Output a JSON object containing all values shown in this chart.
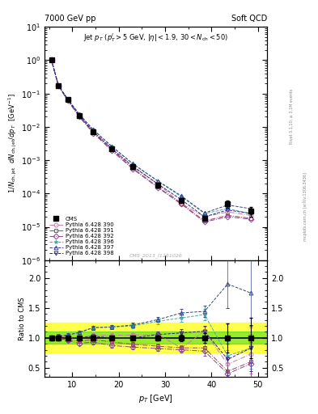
{
  "title_left": "7000 GeV pp",
  "title_right": "Soft QCD",
  "cms_x": [
    5.5,
    7.0,
    9.0,
    11.5,
    14.5,
    18.5,
    23.0,
    28.5,
    33.5,
    38.5,
    43.5,
    48.5
  ],
  "cms_y": [
    1.0,
    0.17,
    0.065,
    0.022,
    0.007,
    0.0022,
    0.00065,
    0.00018,
    6e-05,
    1.8e-05,
    5e-05,
    3e-05
  ],
  "cms_yerr": [
    0.04,
    0.007,
    0.002,
    0.0008,
    0.00025,
    7e-05,
    2.5e-05,
    8e-06,
    3e-06,
    1.5e-06,
    1.2e-05,
    1e-05
  ],
  "series": [
    {
      "label": "Pythia 6.428 390",
      "color": "#c47aaa",
      "marker": "o",
      "linestyle": "-.",
      "x": [
        5.5,
        7.0,
        9.0,
        11.5,
        14.5,
        18.5,
        23.0,
        28.5,
        33.5,
        38.5,
        43.5,
        48.5
      ],
      "y": [
        1.0,
        0.173,
        0.066,
        0.022,
        0.0073,
        0.0023,
        0.00068,
        0.00019,
        5e-05,
        2e-05,
        2.8e-05,
        2.2e-05
      ],
      "ratio": [
        1.0,
        1.02,
        1.015,
        1.0,
        1.043,
        1.045,
        1.046,
        1.056,
        0.83,
        1.11,
        0.56,
        0.73
      ],
      "ratio_err": [
        0.04,
        0.04,
        0.03,
        0.03,
        0.035,
        0.032,
        0.038,
        0.044,
        0.05,
        0.08,
        0.24,
        0.33
      ]
    },
    {
      "label": "Pythia 6.428 391",
      "color": "#994455",
      "marker": "s",
      "linestyle": "-.",
      "x": [
        5.5,
        7.0,
        9.0,
        11.5,
        14.5,
        18.5,
        23.0,
        28.5,
        33.5,
        38.5,
        43.5,
        48.5
      ],
      "y": [
        1.0,
        0.17,
        0.063,
        0.0208,
        0.0068,
        0.00205,
        0.00058,
        0.000155,
        5e-05,
        1.5e-05,
        2.2e-05,
        1.8e-05
      ],
      "ratio": [
        1.0,
        1.0,
        0.969,
        0.945,
        0.971,
        0.932,
        0.892,
        0.861,
        0.833,
        0.833,
        0.44,
        0.6
      ],
      "ratio_err": [
        0.04,
        0.04,
        0.03,
        0.03,
        0.035,
        0.032,
        0.038,
        0.044,
        0.05,
        0.08,
        0.24,
        0.33
      ]
    },
    {
      "label": "Pythia 6.428 392",
      "color": "#884499",
      "marker": "D",
      "linestyle": "-.",
      "x": [
        5.5,
        7.0,
        9.0,
        11.5,
        14.5,
        18.5,
        23.0,
        28.5,
        33.5,
        38.5,
        43.5,
        48.5
      ],
      "y": [
        1.0,
        0.17,
        0.062,
        0.02,
        0.0065,
        0.00192,
        0.00055,
        0.000148,
        4.8e-05,
        1.4e-05,
        2e-05,
        1.7e-05
      ],
      "ratio": [
        1.0,
        1.0,
        0.954,
        0.909,
        0.929,
        0.873,
        0.846,
        0.822,
        0.8,
        0.778,
        0.4,
        0.57
      ],
      "ratio_err": [
        0.04,
        0.04,
        0.03,
        0.03,
        0.035,
        0.032,
        0.038,
        0.044,
        0.05,
        0.08,
        0.24,
        0.33
      ]
    },
    {
      "label": "Pythia 6.428 396",
      "color": "#44aaaa",
      "marker": "*",
      "linestyle": "--",
      "x": [
        5.5,
        7.0,
        9.0,
        11.5,
        14.5,
        18.5,
        23.0,
        28.5,
        33.5,
        38.5,
        43.5,
        48.5
      ],
      "y": [
        1.0,
        0.175,
        0.068,
        0.024,
        0.0082,
        0.0026,
        0.00078,
        0.00023,
        8e-05,
        2.5e-05,
        3.5e-05,
        2.5e-05
      ],
      "ratio": [
        1.0,
        1.03,
        1.046,
        1.091,
        1.171,
        1.182,
        1.2,
        1.278,
        1.333,
        1.389,
        0.7,
        0.83
      ],
      "ratio_err": [
        0.04,
        0.04,
        0.03,
        0.03,
        0.035,
        0.032,
        0.038,
        0.044,
        0.07,
        0.1,
        0.25,
        0.35
      ]
    },
    {
      "label": "Pythia 6.428 397",
      "color": "#334488",
      "marker": "^",
      "linestyle": "--",
      "x": [
        5.5,
        7.0,
        9.0,
        11.5,
        14.5,
        18.5,
        23.0,
        28.5,
        33.5,
        38.5,
        43.5,
        48.5
      ],
      "y": [
        1.0,
        0.175,
        0.068,
        0.024,
        0.0082,
        0.0026,
        0.00079,
        0.000235,
        8.5e-05,
        2.6e-05,
        4.5e-05,
        3.5e-05
      ],
      "ratio": [
        1.0,
        1.03,
        1.046,
        1.091,
        1.171,
        1.182,
        1.215,
        1.306,
        1.417,
        1.444,
        1.9,
        1.75
      ],
      "ratio_err": [
        0.04,
        0.04,
        0.03,
        0.03,
        0.035,
        0.032,
        0.038,
        0.044,
        0.07,
        0.1,
        0.4,
        0.55
      ]
    },
    {
      "label": "Pythia 6.428 398",
      "color": "#332288",
      "marker": "v",
      "linestyle": "--",
      "x": [
        5.5,
        7.0,
        9.0,
        11.5,
        14.5,
        18.5,
        23.0,
        28.5,
        33.5,
        38.5,
        43.5,
        48.5
      ],
      "y": [
        1.0,
        0.172,
        0.065,
        0.022,
        0.0072,
        0.0022,
        0.00065,
        0.00019,
        6.5e-05,
        2e-05,
        3.2e-05,
        2.5e-05
      ],
      "ratio": [
        1.0,
        1.01,
        1.0,
        1.0,
        1.029,
        1.0,
        1.0,
        1.056,
        1.083,
        1.111,
        0.64,
        0.83
      ],
      "ratio_err": [
        0.04,
        0.04,
        0.03,
        0.03,
        0.035,
        0.032,
        0.038,
        0.044,
        0.06,
        0.09,
        0.26,
        0.38
      ]
    }
  ],
  "green_band": [
    0.9,
    1.1
  ],
  "yellow_band": [
    0.75,
    1.25
  ],
  "xlim": [
    4,
    52
  ],
  "ylim_main": [
    1e-06,
    10
  ],
  "ylim_ratio": [
    0.35,
    2.3
  ],
  "ratio_yticks": [
    0.5,
    1.0,
    1.5,
    2.0
  ],
  "bg_color": "#ffffff"
}
